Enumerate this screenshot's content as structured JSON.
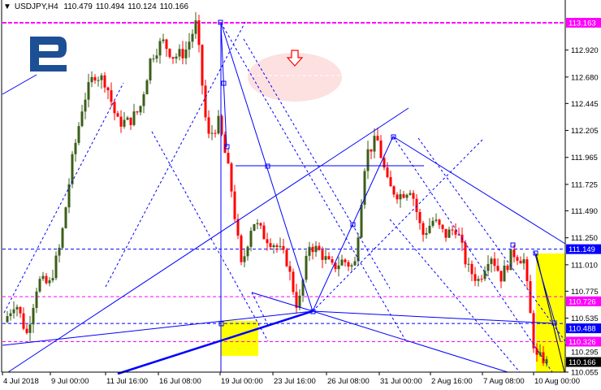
{
  "header": {
    "collapse_icon": "triangle-down-icon",
    "symbol": "USDJPY,H4",
    "open": "110.479",
    "high": "110.494",
    "low": "110.124",
    "close": "110.166"
  },
  "chart_data": {
    "type": "candlestick",
    "symbol": "USDJPY",
    "timeframe": "H4",
    "ylim": [
      110.055,
      113.163
    ],
    "y_ticks": [
      "112.920",
      "112.680",
      "112.445",
      "112.205",
      "111.965",
      "111.725",
      "111.490",
      "111.250",
      "111.010",
      "110.775",
      "110.535",
      "110.295",
      "110.055"
    ],
    "x_ticks": [
      "4 Jul 2018",
      "9 Jul 00:00",
      "11 Jul 16:00",
      "16 Jul 08:00",
      "19 Jul 00:00",
      "23 Jul 16:00",
      "26 Jul 08:00",
      "31 Jul 00:00",
      "2 Aug 16:00",
      "7 Aug 08:00",
      "10 Aug 00:00"
    ],
    "price_path": [
      110.5,
      110.69,
      110.39,
      110.87,
      110.83,
      111.19,
      111.92,
      112.46,
      112.71,
      112.64,
      112.28,
      112.28,
      112.39,
      112.86,
      113.0,
      112.86,
      112.9,
      113.16,
      112.13,
      112.28,
      111.77,
      110.98,
      111.41,
      111.27,
      111.19,
      111.05,
      110.61,
      111.19,
      111.12,
      110.98,
      111.05,
      110.98,
      111.99,
      112.13,
      111.7,
      111.63,
      111.7,
      111.27,
      111.41,
      111.27,
      111.34,
      110.98,
      110.87,
      111.12,
      110.9,
      111.12,
      111.05,
      110.18,
      110.17
    ],
    "levels": [
      {
        "price": 113.163,
        "label": "113.163",
        "color": "#ff00ff",
        "style": "solid"
      },
      {
        "price": 111.149,
        "label": "111.149",
        "color": "#0000ff",
        "style": "dashed"
      },
      {
        "price": 110.726,
        "label": "110.726",
        "color": "#ff00ff",
        "style": "dashed"
      },
      {
        "price": 110.488,
        "label": "110.488",
        "color": "#0000ff",
        "style": "dashed"
      },
      {
        "price": 110.326,
        "label": "110.326",
        "color": "#ff00ff",
        "style": "dashed"
      },
      {
        "price": 110.166,
        "label": "110.166",
        "color": "#000000",
        "style": "none"
      }
    ],
    "colors": {
      "bull": "#3b5e1a",
      "bear": "#ff0000",
      "annotation": "#0000ff",
      "zone": "#ffff00",
      "target_ellipse": "#fde0e0"
    },
    "annotation_arrow": "down-arrow-icon"
  }
}
